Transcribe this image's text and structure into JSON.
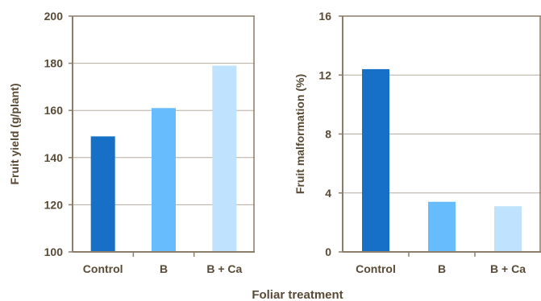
{
  "xlabel": "Foliar treatment",
  "colors": {
    "axis": "#8c7d6a",
    "grid": "#b5ab9d",
    "text": "#594a36"
  },
  "chart_data": [
    {
      "type": "bar",
      "categories": [
        "Control",
        "B",
        "B + Ca"
      ],
      "values": [
        149,
        161,
        179
      ],
      "colors": [
        "#1670c5",
        "#66bcfc",
        "#bfe3fe"
      ],
      "ylabel": "Fruit yield (g/plant)",
      "ylim": [
        100,
        200
      ],
      "yticks": [
        100,
        120,
        140,
        160,
        180,
        200
      ],
      "grid": true
    },
    {
      "type": "bar",
      "categories": [
        "Control",
        "B",
        "B + Ca"
      ],
      "values": [
        12.4,
        3.4,
        3.1
      ],
      "colors": [
        "#1670c5",
        "#66bcfc",
        "#bfe3fe"
      ],
      "ylabel": "Fruit malformation (%)",
      "ylim": [
        0,
        16
      ],
      "yticks": [
        0,
        4,
        8,
        12,
        16
      ],
      "grid": true
    }
  ]
}
